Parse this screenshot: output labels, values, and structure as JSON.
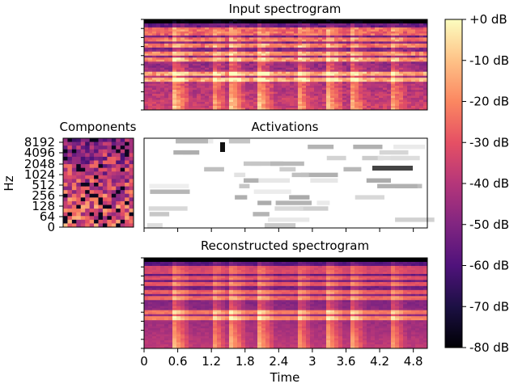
{
  "chart_data": [
    {
      "type": "heatmap",
      "title": "Input spectrogram",
      "x_range": [
        0,
        5.05
      ],
      "tick_labels_shown": false
    },
    {
      "type": "heatmap",
      "title": "Components",
      "ylabel": "Hz",
      "y_scale": "log2",
      "y_ticks": [
        "0",
        "64",
        "128",
        "256",
        "512",
        "1024",
        "2048",
        "4096",
        "8192"
      ]
    },
    {
      "type": "heatmap",
      "title": "Activations",
      "tick_labels_shown": false
    },
    {
      "type": "heatmap",
      "title": "Reconstructed spectrogram",
      "xlabel": "Time",
      "x_range": [
        0,
        5.05
      ],
      "x_ticks": [
        0,
        0.6,
        1.2,
        1.8,
        2.4,
        3,
        3.6,
        4.2,
        4.8
      ],
      "x_tick_labels": [
        "0",
        "0.6",
        "1.2",
        "1.8",
        "2.4",
        "3",
        "3.6",
        "4.2",
        "4.8"
      ]
    }
  ],
  "colorbar": {
    "colormap": "magma",
    "range_db": [
      -80,
      0
    ],
    "tick_values": [
      0,
      -10,
      -20,
      -30,
      -40,
      -50,
      -60,
      -70,
      -80
    ],
    "tick_labels": [
      "+0 dB",
      "-10 dB",
      "-20 dB",
      "-30 dB",
      "-40 dB",
      "-50 dB",
      "-60 dB",
      "-70 dB",
      "-80 dB"
    ]
  }
}
